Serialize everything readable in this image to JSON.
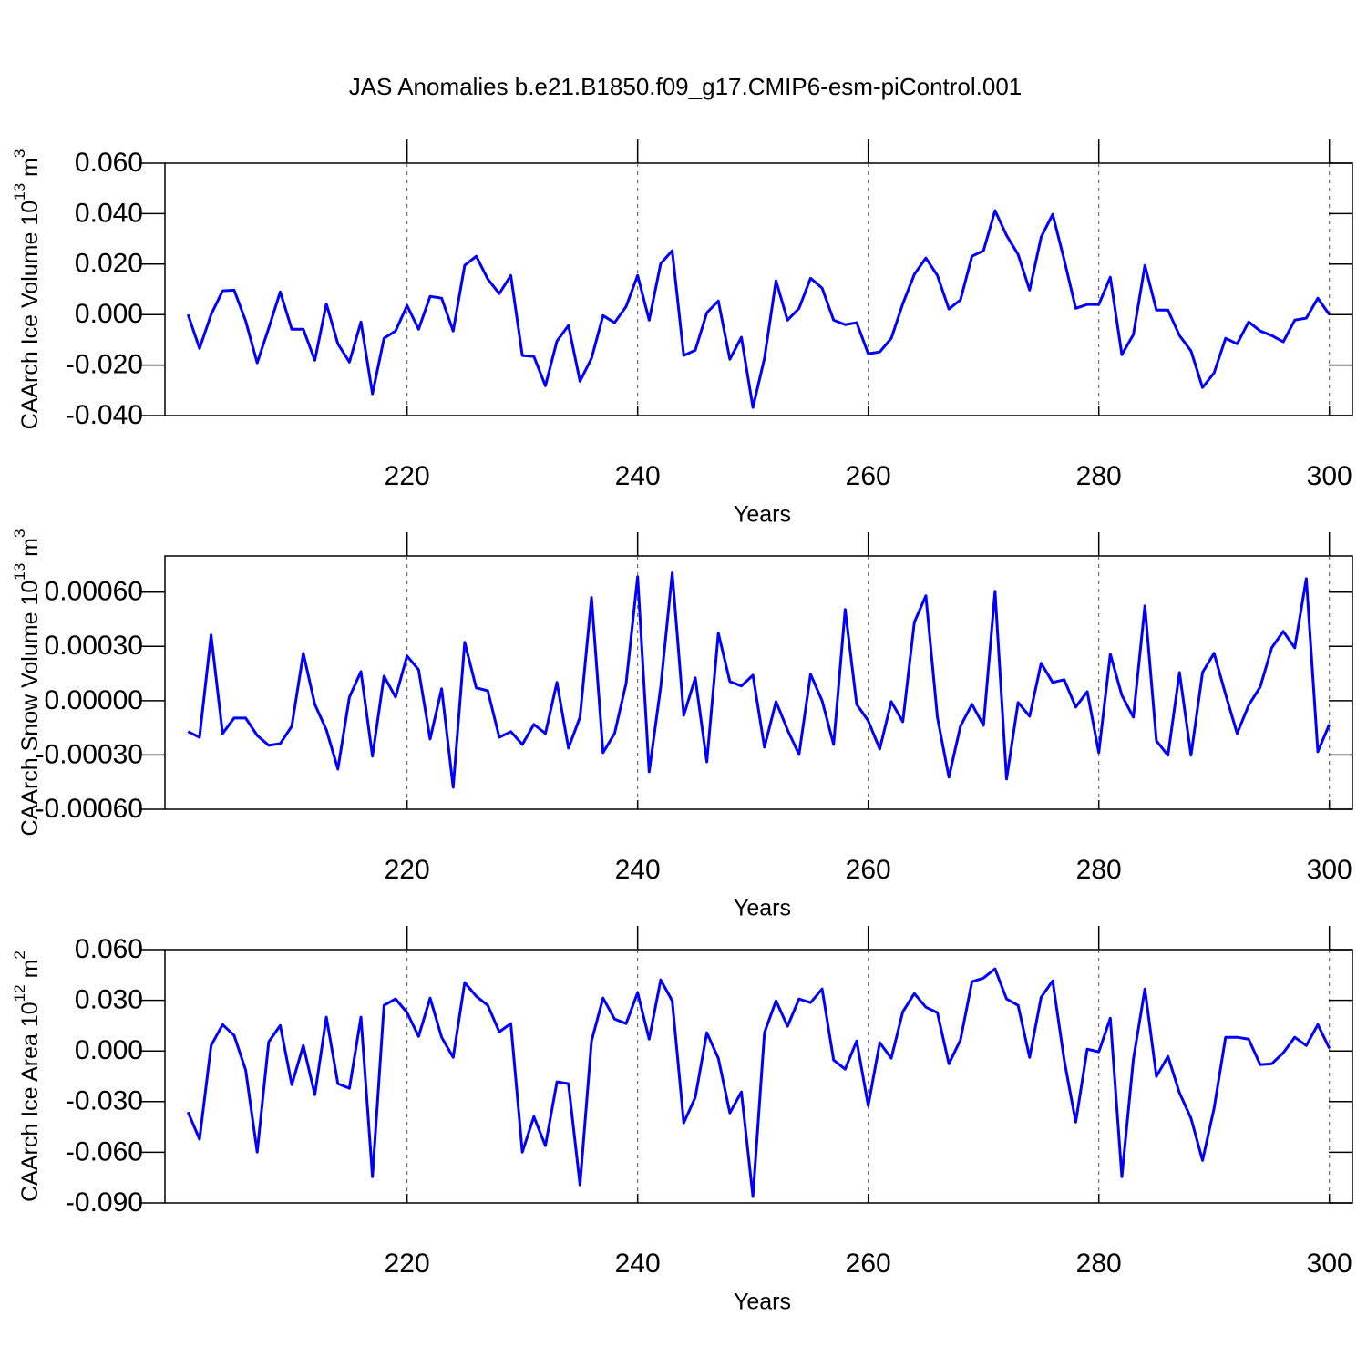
{
  "title": "JAS Anomalies b.e21.B1850.f09_g17.CMIP6-esm-piControl.001",
  "chart_data": [
    {
      "type": "line",
      "ylabel": [
        "CAArch Ice Volume 10",
        "13",
        "m",
        "3"
      ],
      "xlabel": "Years",
      "x": [
        201,
        202,
        203,
        204,
        205,
        206,
        207,
        208,
        209,
        210,
        211,
        212,
        213,
        214,
        215,
        216,
        217,
        218,
        219,
        220,
        221,
        222,
        223,
        224,
        225,
        226,
        227,
        228,
        229,
        230,
        231,
        232,
        233,
        234,
        235,
        236,
        237,
        238,
        239,
        240,
        241,
        242,
        243,
        244,
        245,
        246,
        247,
        248,
        249,
        250,
        251,
        252,
        253,
        254,
        255,
        256,
        257,
        258,
        259,
        260,
        261,
        262,
        263,
        264,
        265,
        266,
        267,
        268,
        269,
        270,
        271,
        272,
        273,
        274,
        275,
        276,
        277,
        278,
        279,
        280,
        281,
        282,
        283,
        284,
        285,
        286,
        287,
        288,
        289,
        290,
        291,
        292,
        293,
        294,
        295,
        296,
        297,
        298,
        299,
        300
      ],
      "series": [
        {
          "color": "#0000ff",
          "values": [
            0,
            -0.0134,
            0,
            0.0094,
            0.0097,
            -0.0025,
            -0.0191,
            -0.0054,
            0.009,
            -0.0058,
            -0.0058,
            -0.0181,
            0.0043,
            -0.0116,
            -0.0188,
            -0.0029,
            -0.0314,
            -0.0094,
            -0.0065,
            0.0036,
            -0.0058,
            0.0072,
            0.0065,
            -0.0065,
            0.0195,
            0.0231,
            0.0141,
            0.0083,
            0.0155,
            -0.0162,
            -0.0166,
            -0.0282,
            -0.0105,
            -0.0043,
            -0.0264,
            -0.0173,
            -0.0004,
            -0.0032,
            0.0032,
            0.0155,
            -0.0022,
            0.0202,
            0.0253,
            -0.0162,
            -0.0141,
            0.0007,
            0.0054,
            -0.0177,
            -0.009,
            -0.0368,
            -0.0173,
            0.0134,
            -0.0022,
            0.0025,
            0.0144,
            0.0105,
            -0.0022,
            -0.004,
            -0.0032,
            -0.0155,
            -0.0148,
            -0.0094,
            0.0043,
            0.0159,
            0.0224,
            0.0155,
            0.0022,
            0.0058,
            0.0231,
            0.0253,
            0.0412,
            0.0314,
            0.0238,
            0.0097,
            0.0307,
            0.0397,
            0.0217,
            0.0025,
            0.004,
            0.004,
            0.0148,
            -0.0159,
            -0.0079,
            0.0195,
            0.0018,
            0.0018,
            -0.0083,
            -0.0144,
            -0.0289,
            -0.0231,
            -0.0094,
            -0.0116,
            -0.0029,
            -0.0065,
            -0.0083,
            -0.0108,
            -0.0022,
            -0.0014,
            0.0065,
            0
          ]
        }
      ],
      "xlim": [
        199,
        302
      ],
      "ylim": [
        -0.04,
        0.06
      ],
      "xticks": [
        220,
        240,
        260,
        280,
        300
      ],
      "yticks": [
        {
          "value": -0.04,
          "label": "-0.040"
        },
        {
          "value": -0.02,
          "label": "-0.020"
        },
        {
          "value": 0,
          "label": "0.000"
        },
        {
          "value": 0.02,
          "label": "0.020"
        },
        {
          "value": 0.04,
          "label": "0.040"
        },
        {
          "value": 0.06,
          "label": "0.060"
        }
      ],
      "grid": true
    },
    {
      "type": "line",
      "ylabel": [
        "CAArch Snow Volume 10",
        "13",
        "m",
        "3"
      ],
      "xlabel": "Years",
      "x": [
        201,
        202,
        203,
        204,
        205,
        206,
        207,
        208,
        209,
        210,
        211,
        212,
        213,
        214,
        215,
        216,
        217,
        218,
        219,
        220,
        221,
        222,
        223,
        224,
        225,
        226,
        227,
        228,
        229,
        230,
        231,
        232,
        233,
        234,
        235,
        236,
        237,
        238,
        239,
        240,
        241,
        242,
        243,
        244,
        245,
        246,
        247,
        248,
        249,
        250,
        251,
        252,
        253,
        254,
        255,
        256,
        257,
        258,
        259,
        260,
        261,
        262,
        263,
        264,
        265,
        266,
        267,
        268,
        269,
        270,
        271,
        272,
        273,
        274,
        275,
        276,
        277,
        278,
        279,
        280,
        281,
        282,
        283,
        284,
        285,
        286,
        287,
        288,
        289,
        290,
        291,
        292,
        293,
        294,
        295,
        296,
        297,
        298,
        299,
        300
      ],
      "series": [
        {
          "color": "#0000ff",
          "values": [
            -0.000171,
            -0.000202,
            0.000363,
            -0.000181,
            -9.6e-05,
            -9.6e-05,
            -0.000192,
            -0.000247,
            -0.000237,
            -0.000141,
            0.000262,
            -2e-05,
            -0.000161,
            -0.000378,
            2e-05,
            0.000161,
            -0.000307,
            0.000136,
            2e-05,
            0.000247,
            0.000171,
            -0.000212,
            6.6e-05,
            -0.000479,
            0.000323,
            7.1e-05,
            5.5e-05,
            -0.000202,
            -0.000171,
            -0.000242,
            -0.000131,
            -0.000181,
            0.000101,
            -0.000262,
            -9.1e-05,
            0.00057,
            -0.000287,
            -0.000181,
            9.6e-05,
            0.000685,
            -0.000393,
            7.6e-05,
            0.000706,
            -8.1e-05,
            0.000126,
            -0.000338,
            0.000373,
            0.000106,
            8.1e-05,
            0.000141,
            -0.000257,
            -5e-06,
            -0.000161,
            -0.000297,
            0.000146,
            0,
            -0.000242,
            0.000504,
            -2e-05,
            -0.000111,
            -0.000267,
            -5e-06,
            -0.000116,
            0.000433,
            0.00058,
            -9.1e-05,
            -0.000423,
            -0.000141,
            -2e-05,
            -0.000136,
            0.000605,
            -0.000433,
            -1e-05,
            -8.6e-05,
            0.000207,
            0.000101,
            0.000116,
            -3.5e-05,
            5e-05,
            -0.000287,
            0.000257,
            3e-05,
            -9.1e-05,
            0.000524,
            -0.000222,
            -0.000302,
            0.000156,
            -0.000302,
            0.000156,
            0.000262,
            3.5e-05,
            -0.000181,
            -2.5e-05,
            7.6e-05,
            0.000292,
            0.000383,
            0.000292,
            0.000675,
            -0.000282,
            -0.000131
          ]
        }
      ],
      "xlim": [
        199,
        302
      ],
      "ylim": [
        -0.0006,
        0.0008
      ],
      "xticks": [
        220,
        240,
        260,
        280,
        300
      ],
      "yticks": [
        {
          "value": -0.0006,
          "label": "-0.00060"
        },
        {
          "value": -0.0003,
          "label": "-0.00030"
        },
        {
          "value": 0,
          "label": "0.00000"
        },
        {
          "value": 0.0003,
          "label": "0.00030"
        },
        {
          "value": 0.0006,
          "label": "0.00060"
        }
      ],
      "grid": true
    },
    {
      "type": "line",
      "ylabel": [
        "CAArch Ice Area 10",
        "12",
        "m",
        "2"
      ],
      "xlabel": "Years",
      "x": [
        201,
        202,
        203,
        204,
        205,
        206,
        207,
        208,
        209,
        210,
        211,
        212,
        213,
        214,
        215,
        216,
        217,
        218,
        219,
        220,
        221,
        222,
        223,
        224,
        225,
        226,
        227,
        228,
        229,
        230,
        231,
        232,
        233,
        234,
        235,
        236,
        237,
        238,
        239,
        240,
        241,
        242,
        243,
        244,
        245,
        246,
        247,
        248,
        249,
        250,
        251,
        252,
        253,
        254,
        255,
        256,
        257,
        258,
        259,
        260,
        261,
        262,
        263,
        264,
        265,
        266,
        267,
        268,
        269,
        270,
        271,
        272,
        273,
        274,
        275,
        276,
        277,
        278,
        279,
        280,
        281,
        282,
        283,
        284,
        285,
        286,
        287,
        288,
        289,
        290,
        291,
        292,
        293,
        294,
        295,
        296,
        297,
        298,
        299,
        300
      ],
      "series": [
        {
          "color": "#0000ff",
          "values": [
            -0.0362,
            -0.0523,
            0.0032,
            0.0156,
            0.0092,
            -0.0113,
            -0.0599,
            0.0054,
            0.0151,
            -0.02,
            0.0032,
            -0.0259,
            0.02,
            -0.0194,
            -0.0221,
            0.02,
            -0.0745,
            0.027,
            0.0308,
            0.0227,
            0.0086,
            0.0313,
            0.0081,
            -0.0038,
            0.0405,
            0.0324,
            0.027,
            0.0113,
            0.0162,
            -0.0599,
            -0.0389,
            -0.0561,
            -0.0183,
            -0.0194,
            -0.0793,
            0.0059,
            0.0313,
            0.0189,
            0.0162,
            0.0345,
            0.007,
            0.0421,
            0.0297,
            -0.0426,
            -0.0275,
            0.0108,
            -0.0043,
            -0.0367,
            -0.0243,
            -0.0863,
            0.0108,
            0.0297,
            0.0146,
            0.0308,
            0.0286,
            0.0367,
            -0.0054,
            -0.0108,
            0.0059,
            -0.0324,
            0.0049,
            -0.0043,
            0.0232,
            0.034,
            0.0259,
            0.0227,
            -0.0076,
            0.0065,
            0.041,
            0.0432,
            0.0486,
            0.0308,
            0.027,
            -0.0038,
            0.0318,
            0.0415,
            -0.0054,
            -0.0421,
            0.0011,
            -0.0005,
            0.0194,
            -0.0745,
            -0.0049,
            0.0367,
            -0.0151,
            -0.0032,
            -0.0248,
            -0.0399,
            -0.0648,
            -0.034,
            0.0081,
            0.0081,
            0.007,
            -0.0081,
            -0.0076,
            -0.0011,
            0.0081,
            0.0032,
            0.0156,
            0.0016
          ]
        }
      ],
      "xlim": [
        199,
        302
      ],
      "ylim": [
        -0.09,
        0.06
      ],
      "xticks": [
        220,
        240,
        260,
        280,
        300
      ],
      "yticks": [
        {
          "value": -0.09,
          "label": "-0.090"
        },
        {
          "value": -0.06,
          "label": "-0.060"
        },
        {
          "value": -0.03,
          "label": "-0.030"
        },
        {
          "value": 0,
          "label": "0.000"
        },
        {
          "value": 0.03,
          "label": "0.030"
        },
        {
          "value": 0.06,
          "label": "0.060"
        }
      ],
      "grid": true
    }
  ]
}
